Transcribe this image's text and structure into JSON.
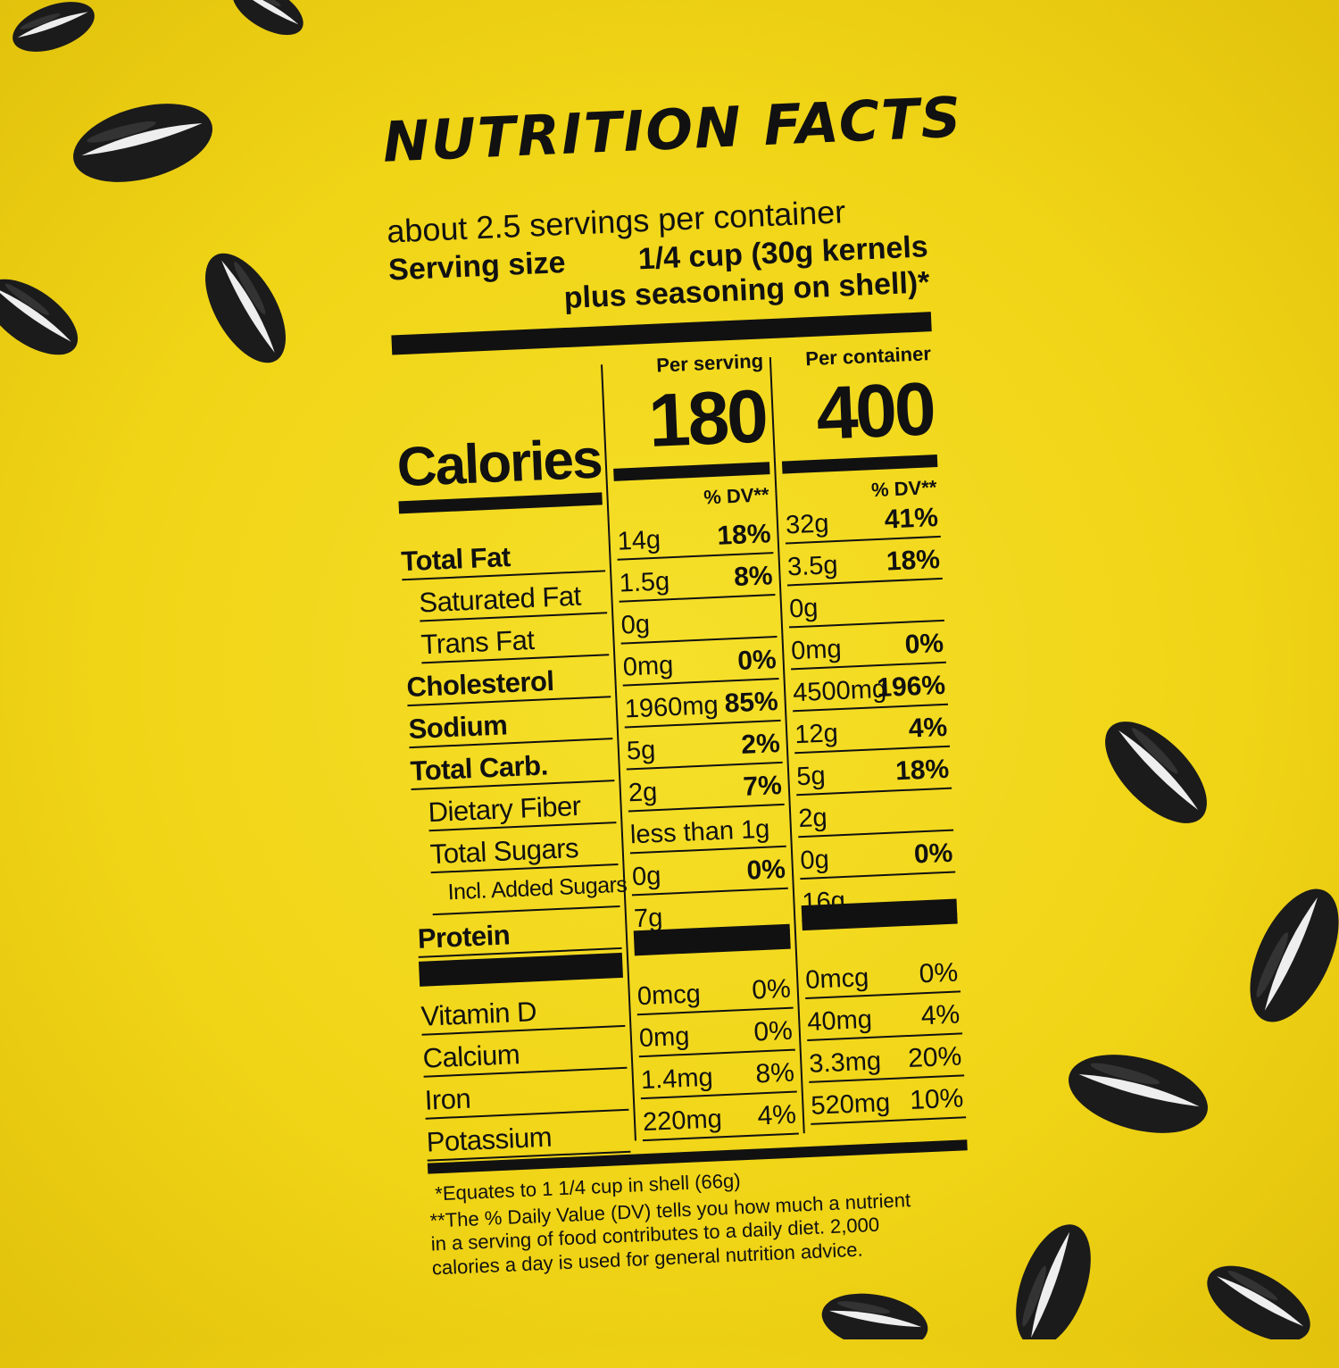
{
  "title": "NUTRITION FACTS",
  "servings": "about 2.5 servings per container",
  "serving_size": {
    "label": "Serving size",
    "line1": "1/4 cup (30g kernels",
    "line2": "plus seasoning on shell)*"
  },
  "columns": {
    "per_serving": "Per serving",
    "per_container": "Per container"
  },
  "calories": {
    "label": "Calories",
    "per_serving": "180",
    "per_container": "400"
  },
  "dv_header": "% DV**",
  "nutrients": [
    {
      "name": "Total Fat",
      "serving": "14g",
      "serving_dv": "18%",
      "container": "32g",
      "container_dv": "41%"
    },
    {
      "name": "Saturated Fat",
      "serving": "1.5g",
      "serving_dv": "8%",
      "container": "3.5g",
      "container_dv": "18%"
    },
    {
      "name": "Trans Fat",
      "serving": "0g",
      "container": "0g"
    },
    {
      "name": "Cholesterol",
      "serving": "0mg",
      "serving_dv": "0%",
      "container": "0mg",
      "container_dv": "0%"
    },
    {
      "name": "Sodium",
      "serving": "1960mg",
      "serving_dv": "85%",
      "container": "4500mg",
      "container_dv": "196%"
    },
    {
      "name": "Total Carb.",
      "serving": "5g",
      "serving_dv": "2%",
      "container": "12g",
      "container_dv": "4%"
    },
    {
      "name": "Dietary Fiber",
      "serving": "2g",
      "serving_dv": "7%",
      "container": "5g",
      "container_dv": "18%"
    },
    {
      "name": "Total Sugars",
      "serving": "less than 1g",
      "container": "2g"
    },
    {
      "name": "Incl. Added Sugars",
      "serving": "0g",
      "serving_dv": "0%",
      "container": "0g",
      "container_dv": "0%"
    },
    {
      "name": "Protein",
      "serving": "7g",
      "container": "16g"
    }
  ],
  "vitamins": [
    {
      "name": "Vitamin D",
      "serving": "0mcg",
      "serving_dv": "0%",
      "container": "0mcg",
      "container_dv": "0%"
    },
    {
      "name": "Calcium",
      "serving": "0mg",
      "serving_dv": "0%",
      "container": "40mg",
      "container_dv": "4%"
    },
    {
      "name": "Iron",
      "serving": "1.4mg",
      "serving_dv": "8%",
      "container": "3.3mg",
      "container_dv": "20%"
    },
    {
      "name": "Potassium",
      "serving": "220mg",
      "serving_dv": "4%",
      "container": "520mg",
      "container_dv": "10%"
    }
  ],
  "footnotes": [
    "*Equates to 1 1/4 cup in shell (66g)",
    "**The % Daily Value (DV) tells you how much a nutrient in a serving of food contributes to a daily diet. 2,000 calories a day is used for general nutrition advice."
  ]
}
